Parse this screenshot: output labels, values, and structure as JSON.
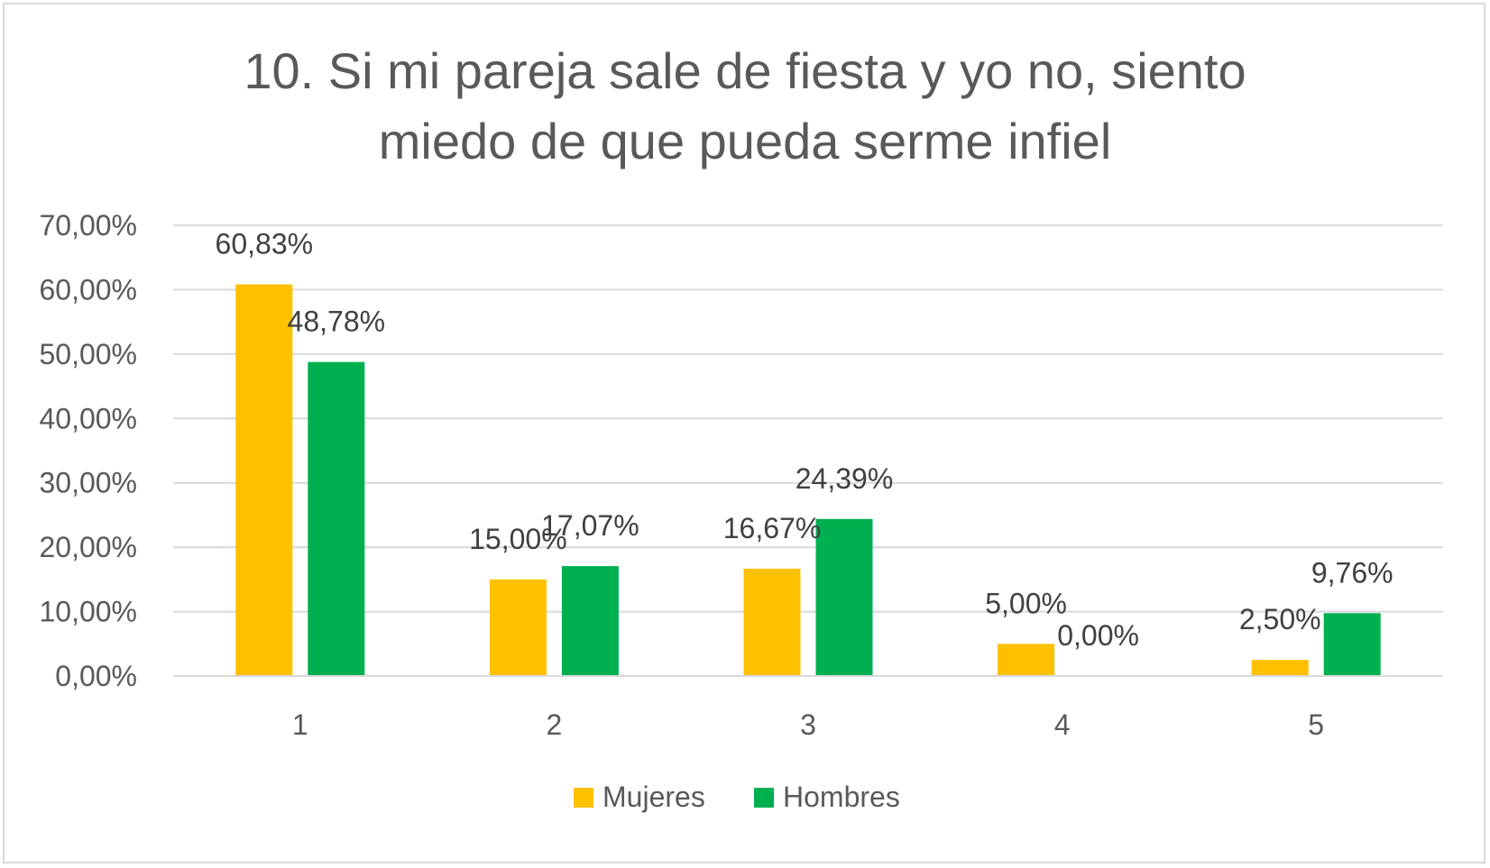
{
  "chart_data": {
    "type": "bar",
    "title": "10. Si mi pareja sale de fiesta y yo no, siento miedo de que pueda serme infiel",
    "title_lines": [
      "10. Si mi pareja sale de fiesta y yo no, siento",
      "miedo de que pueda serme infiel"
    ],
    "categories": [
      "1",
      "2",
      "3",
      "4",
      "5"
    ],
    "series": [
      {
        "name": "Mujeres",
        "color": "#FFC000",
        "values": [
          60.83,
          15.0,
          16.67,
          5.0,
          2.5
        ],
        "labels": [
          "60,83%",
          "15,00%",
          "16,67%",
          "5,00%",
          "2,50%"
        ]
      },
      {
        "name": "Hombres",
        "color": "#00B050",
        "values": [
          48.78,
          17.07,
          24.39,
          0.0,
          9.76
        ],
        "labels": [
          "48,78%",
          "17,07%",
          "24,39%",
          "0,00%",
          "9,76%"
        ]
      }
    ],
    "ylim": [
      0,
      70
    ],
    "yticks": [
      0,
      10,
      20,
      30,
      40,
      50,
      60,
      70
    ],
    "ytick_labels": [
      "0,00%",
      "10,00%",
      "20,00%",
      "30,00%",
      "40,00%",
      "50,00%",
      "60,00%",
      "70,00%"
    ],
    "xlabel": "",
    "ylabel": "",
    "grid": true,
    "gridline_color": "#D9D9D9",
    "legend_position": "bottom"
  }
}
